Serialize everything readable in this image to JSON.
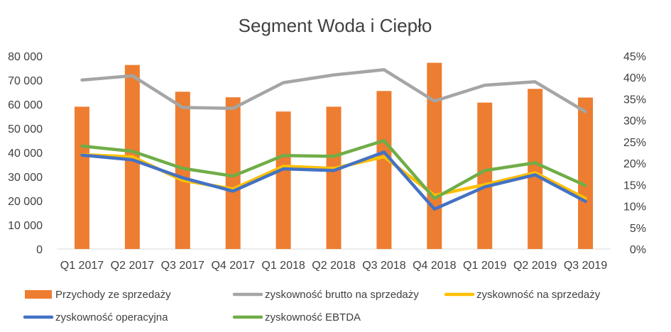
{
  "chart_data": {
    "type": "bar+line",
    "title": "Segment Woda i Ciepło",
    "categories": [
      "Q1 2017",
      "Q2 2017",
      "Q3 2017",
      "Q4 2017",
      "Q1 2018",
      "Q2 2018",
      "Q3 2018",
      "Q4 2018",
      "Q1 2019",
      "Q2 2019",
      "Q3 2019"
    ],
    "left_axis": {
      "ylim": [
        0,
        80000
      ],
      "ticks": [
        0,
        10000,
        20000,
        30000,
        40000,
        50000,
        60000,
        70000,
        80000
      ],
      "tick_labels": [
        "0",
        "10 000",
        "20 000",
        "30 000",
        "40 000",
        "50 000",
        "60 000",
        "70 000",
        "80 000"
      ]
    },
    "right_axis": {
      "ylim": [
        0,
        0.45
      ],
      "ticks": [
        0,
        0.05,
        0.1,
        0.15,
        0.2,
        0.25,
        0.3,
        0.35,
        0.4,
        0.45
      ],
      "tick_labels": [
        "0%",
        "5%",
        "10%",
        "15%",
        "20%",
        "25%",
        "30%",
        "35%",
        "40%",
        "45%"
      ]
    },
    "bars": {
      "name": "Przychody ze sprzedaży",
      "color": "#ED7D31",
      "values": [
        59000,
        76300,
        65200,
        62900,
        57000,
        59000,
        65500,
        77200,
        60700,
        66400,
        62800
      ]
    },
    "series": [
      {
        "name": "zyskowność brutto na sprzedaży",
        "color": "#A5A5A5",
        "values": [
          0.394,
          0.404,
          0.33,
          0.328,
          0.388,
          0.406,
          0.418,
          0.345,
          0.382,
          0.39,
          0.32
        ]
      },
      {
        "name": "zyskowność na sprzedaży",
        "color": "#FFC000",
        "values": [
          0.22,
          0.215,
          0.16,
          0.14,
          0.193,
          0.188,
          0.215,
          0.125,
          0.15,
          0.178,
          0.118
        ]
      },
      {
        "name": "zyskowność operacyjna",
        "color": "#4472C4",
        "values": [
          0.219,
          0.208,
          0.166,
          0.135,
          0.187,
          0.183,
          0.226,
          0.093,
          0.145,
          0.173,
          0.111
        ]
      },
      {
        "name": "zyskowność EBTDA",
        "color": "#70AD47",
        "values": [
          0.24,
          0.228,
          0.188,
          0.17,
          0.218,
          0.216,
          0.253,
          0.118,
          0.183,
          0.201,
          0.148
        ]
      }
    ],
    "grid": false,
    "legend_position": "bottom"
  }
}
